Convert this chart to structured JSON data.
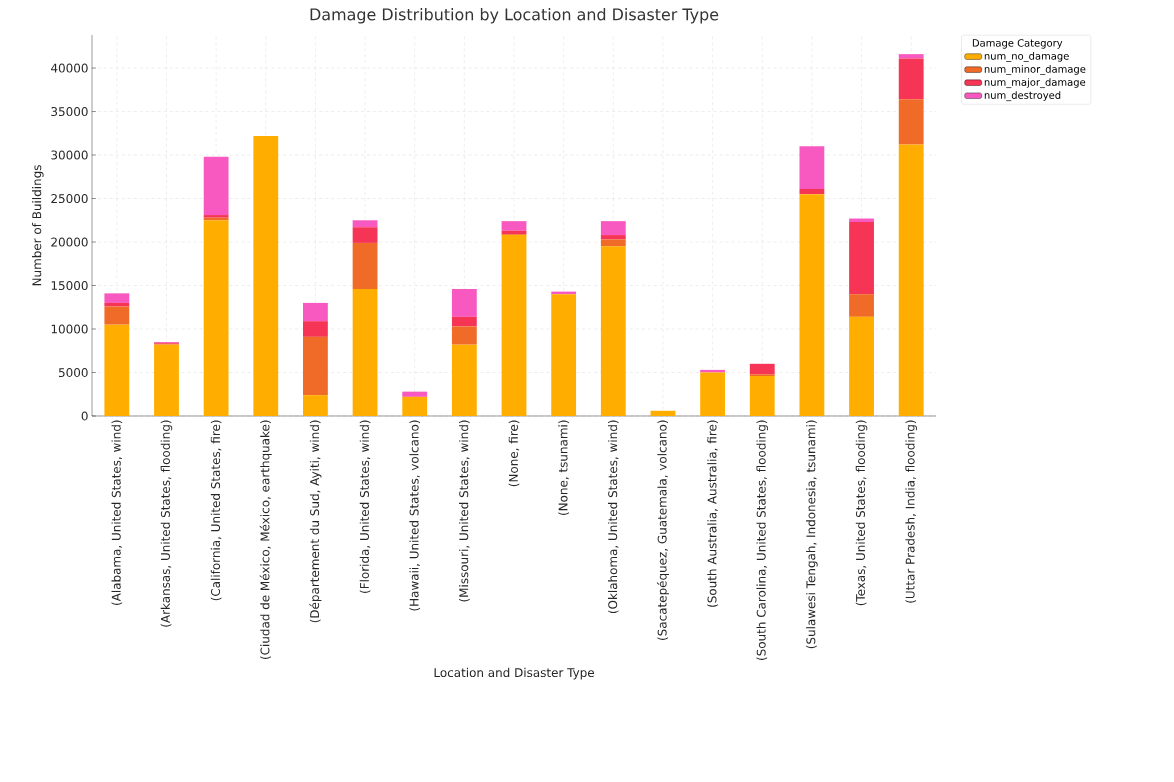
{
  "chart_data": {
    "type": "bar",
    "stacked": true,
    "title": "Damage Distribution by Location and Disaster Type",
    "xlabel": "Location and Disaster Type",
    "ylabel": "Number of Buildings",
    "legend_title": "Damage Category",
    "legend": "top right",
    "grid": true,
    "categories": [
      "(Alabama, United States, wind)",
      "(Arkansas, United States, flooding)",
      "(California, United States, fire)",
      "(Ciudad de México, México, earthquake)",
      "(Département du Sud, Ayiti, wind)",
      "(Florida, United States, wind)",
      "(Hawaii, United States, volcano)",
      "(Missouri, United States, wind)",
      "(None, fire)",
      "(None, tsunami)",
      "(Oklahoma, United States, wind)",
      "(Sacatepéquez, Guatemala, volcano)",
      "(South Australia, Australia, fire)",
      "(South Carolina, United States, flooding)",
      "(Sulawesi Tengah, Indonesia, tsunami)",
      "(Texas, United States, flooding)",
      "(Uttar Pradesh, India, flooding)"
    ],
    "series": [
      {
        "name": "num_no_damage",
        "color": "#ffae00",
        "values": [
          10500,
          8200,
          22500,
          32200,
          2400,
          14600,
          2200,
          8200,
          20800,
          14000,
          19500,
          600,
          5000,
          4600,
          25500,
          11400,
          31200
        ]
      },
      {
        "name": "num_minor_damage",
        "color": "#f06a28",
        "values": [
          2100,
          100,
          300,
          0,
          6700,
          5300,
          0,
          2100,
          100,
          0,
          800,
          0,
          0,
          200,
          0,
          2600,
          5200
        ]
      },
      {
        "name": "num_major_damage",
        "color": "#f53456",
        "values": [
          400,
          100,
          300,
          0,
          1800,
          1800,
          0,
          1100,
          400,
          0,
          500,
          0,
          0,
          1200,
          600,
          8300,
          4700
        ]
      },
      {
        "name": "num_destroyed",
        "color": "#f759c0",
        "values": [
          1100,
          100,
          6700,
          0,
          2100,
          800,
          600,
          3200,
          1100,
          300,
          1600,
          0,
          300,
          0,
          4900,
          400,
          500
        ]
      }
    ],
    "ylim": [
      0,
      43800
    ],
    "yticks": [
      0,
      5000,
      10000,
      15000,
      20000,
      25000,
      30000,
      35000,
      40000
    ]
  }
}
